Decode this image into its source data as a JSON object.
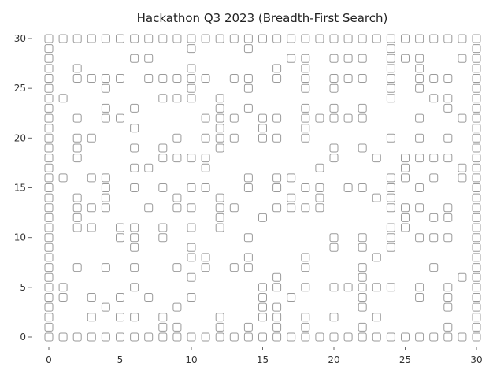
{
  "title": "Hackathon Q3 2023 (Breadth-First Search)",
  "axes": {
    "x_ticks": [
      "0",
      "5",
      "10",
      "15",
      "20",
      "25",
      "30"
    ],
    "y_ticks": [
      "30",
      "25",
      "20",
      "15",
      "10",
      "5",
      "0"
    ]
  },
  "chart_data": {
    "type": "scatter",
    "title": "Hackathon Q3 2023 (Breadth-First Search)",
    "xlim": [
      0,
      30
    ],
    "ylim": [
      0,
      30
    ],
    "grid": false,
    "marker": "rounded-square",
    "colors": {
      "cell_stroke": "#9a9a9a",
      "cell_fill": "#ffffff"
    },
    "maze_rows_top_to_bottom": [
      "###############################",
      "#.........#...#.........#.....#",
      "#.....##.........##.###.###..##",
      "#.#.......#.....#.#.....#.#...#",
      "#.####.#####.##.#.#.###.#.###.#",
      "#...#.....#...#...#.#...#.#...#",
      "##......###.#...........#..##.#",
      "#...#.#.....#.#...#.#.#.....#.#",
      "#.#.##.....###.##.#####...#..##",
      "#.....#.....#..#..#...........#",
      "#.##.....#.###.##.#.....#.#.#.#",
      "#.#...#.#...#.......#.#.......#",
      "#.#.....####........#..#.####.#",
      "#.....##...#.......#.....#...##",
      "##.##.........#.##......##.#.##",
      "#...#.#.#.##..#.#.##.##.#.#...#",
      "#.#.#....#..#....#.#...##.....#",
      "#.###..#.##.##..####....###.#.#",
      "#.#.........#..#.........#.##.#",
      "#.##.##.#.#.#...........##....#",
      "#....##.#.....#.....#.#.#.###.#",
      "#.....#...#.........#.#.#.....#",
      "#.........##..#...#....#......#",
      "#.#.#.#..#.#.##...#...#....#..#",
      "#.........#.....#.....#......##",
      "##....#........##.#.#####.#.#.#",
      "##.#.#.#..#....#.#....#...#.#.#",
      "#...#....#.....##.....#.....#.#",
      "#..#.##.#...#..##.#.#..#......#",
      "#.......##..#.#.#.#...#.....#.#",
      "###############################"
    ]
  }
}
